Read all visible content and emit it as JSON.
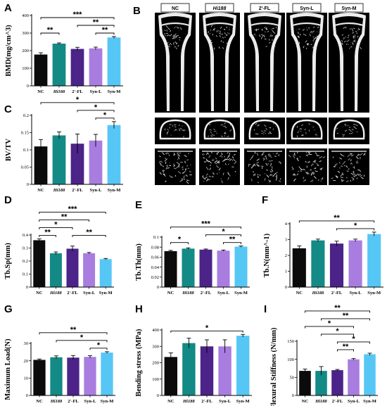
{
  "groups": [
    "NC",
    "Hi188",
    "2'-FL",
    "Syn-L",
    "Syn-M"
  ],
  "colors": [
    "#0b0b0b",
    "#138a85",
    "#4b2389",
    "#a87ddf",
    "#56c7f5"
  ],
  "panel_B": {
    "letter": "B",
    "labels": [
      "NC",
      "Hi188",
      "2'-FL",
      "Syn-L",
      "Syn-M"
    ]
  },
  "chart_data": [
    {
      "letter": "A",
      "type": "bar",
      "ylabel": "BMD(mg/cm^3)",
      "categories": [
        "NC",
        "Hi188",
        "2'-FL",
        "Syn-L",
        "Syn-M"
      ],
      "values": [
        178,
        240,
        210,
        213,
        275
      ],
      "errors": [
        10,
        4,
        9,
        7,
        5
      ],
      "ylim": [
        0,
        400
      ],
      "yticks": [
        0,
        100,
        200,
        300,
        400
      ],
      "significance": [
        {
          "from": 0,
          "to": 1,
          "label": "**"
        },
        {
          "from": 2,
          "to": 4,
          "label": "**"
        },
        {
          "from": 3,
          "to": 4,
          "label": "**"
        },
        {
          "from": 0,
          "to": 4,
          "label": "***"
        }
      ]
    },
    {
      "letter": "C",
      "type": "bar",
      "ylabel": "BV/TV",
      "categories": [
        "NC",
        "Hi188",
        "2'-FL",
        "Syn-L",
        "Syn-M"
      ],
      "values": [
        0.11,
        0.142,
        0.118,
        0.127,
        0.172
      ],
      "errors": [
        0.02,
        0.01,
        0.028,
        0.018,
        0.01
      ],
      "ylim": [
        0,
        0.2
      ],
      "yticks": [
        0,
        0.05,
        0.1,
        0.15,
        0.2
      ],
      "significance": [
        {
          "from": 0,
          "to": 4,
          "label": "*"
        },
        {
          "from": 2,
          "to": 4,
          "label": "*"
        },
        {
          "from": 3,
          "to": 4,
          "label": "*"
        }
      ]
    },
    {
      "letter": "D",
      "type": "bar",
      "ylabel": "Tb.Sp(mm)",
      "categories": [
        "NC",
        "Hi188",
        "2'-FL",
        "Syn-L",
        "Syn-M"
      ],
      "values": [
        0.36,
        0.26,
        0.295,
        0.26,
        0.215
      ],
      "errors": [
        0.01,
        0.01,
        0.02,
        0.006,
        0.005
      ],
      "ylim": [
        0,
        0.4
      ],
      "yticks": [
        0,
        0.1,
        0.2,
        0.3,
        0.4
      ],
      "significance": [
        {
          "from": 0,
          "to": 1,
          "label": "**"
        },
        {
          "from": 2,
          "to": 4,
          "label": "**"
        },
        {
          "from": 0,
          "to": 2,
          "label": "*"
        },
        {
          "from": 0,
          "to": 3,
          "label": "**"
        },
        {
          "from": 0,
          "to": 4,
          "label": "***"
        }
      ]
    },
    {
      "letter": "E",
      "type": "bar",
      "ylabel": "Tb.Th(mm)",
      "categories": [
        "NC",
        "Hi188",
        "2'-FL",
        "Syn-L",
        "Syn-M"
      ],
      "values": [
        0.072,
        0.077,
        0.075,
        0.073,
        0.081
      ],
      "errors": [
        0.0015,
        0.0015,
        0.0012,
        0.0012,
        0.0012
      ],
      "ylim": [
        0,
        0.1
      ],
      "yticks": [
        0,
        0.02,
        0.04,
        0.06,
        0.08,
        0.1
      ],
      "significance": [
        {
          "from": 0,
          "to": 1,
          "label": "*"
        },
        {
          "from": 3,
          "to": 4,
          "label": "**"
        },
        {
          "from": 2,
          "to": 4,
          "label": "*"
        },
        {
          "from": 0,
          "to": 4,
          "label": "***"
        }
      ]
    },
    {
      "letter": "F",
      "type": "bar",
      "ylabel": "Tb.N(mm^-1)",
      "categories": [
        "NC",
        "Hi188",
        "2'-FL",
        "Syn-L",
        "Syn-M"
      ],
      "values": [
        2.45,
        2.95,
        2.75,
        2.95,
        3.35
      ],
      "errors": [
        0.15,
        0.08,
        0.15,
        0.08,
        0.12
      ],
      "ylim": [
        0,
        4
      ],
      "yticks": [
        0,
        1,
        2,
        3,
        4
      ],
      "significance": [
        {
          "from": 2,
          "to": 4,
          "label": "*"
        },
        {
          "from": 0,
          "to": 4,
          "label": "**"
        }
      ]
    },
    {
      "letter": "G",
      "type": "bar",
      "ylabel": "Maximum Load(N)",
      "categories": [
        "NC",
        "Hi188",
        "2'-FL",
        "Syn-L",
        "Syn-M"
      ],
      "values": [
        20.5,
        22,
        21.8,
        22.2,
        24.7
      ],
      "errors": [
        0.5,
        0.8,
        1.2,
        0.7,
        0.5
      ],
      "ylim": [
        0,
        30
      ],
      "yticks": [
        0,
        10,
        20,
        30
      ],
      "significance": [
        {
          "from": 3,
          "to": 4,
          "label": "*"
        },
        {
          "from": 1,
          "to": 4,
          "label": "*"
        },
        {
          "from": 0,
          "to": 4,
          "label": "**"
        }
      ]
    },
    {
      "letter": "H",
      "type": "bar",
      "ylabel": "Bending stress (MPa)",
      "categories": [
        "NC",
        "Hi188",
        "2'-FL",
        "Syn-L",
        "Syn-M"
      ],
      "values": [
        235,
        320,
        300,
        300,
        365
      ],
      "errors": [
        25,
        30,
        40,
        40,
        8
      ],
      "ylim": [
        0,
        400
      ],
      "yticks": [
        0,
        100,
        200,
        300,
        400
      ],
      "significance": [
        {
          "from": 0,
          "to": 4,
          "label": "*"
        }
      ]
    },
    {
      "letter": "I",
      "type": "bar",
      "ylabel": "Flexural Stiffness (N/mm)",
      "categories": [
        "NC",
        "Hi188",
        "2'-FL",
        "Syn-L",
        "Syn-M"
      ],
      "values": [
        68,
        68,
        70,
        100,
        114
      ],
      "errors": [
        5,
        12,
        2,
        2,
        3
      ],
      "ylim": [
        0,
        150
      ],
      "yticks": [
        0,
        50,
        100,
        150
      ],
      "significance": [
        {
          "from": 2,
          "to": 4,
          "label": "*"
        },
        {
          "from": 1,
          "to": 3,
          "label": "*"
        },
        {
          "from": 2,
          "to": 3,
          "label": "**"
        },
        {
          "from": 0,
          "to": 3,
          "label": "*"
        },
        {
          "from": 1,
          "to": 4,
          "label": "**"
        },
        {
          "from": 0,
          "to": 4,
          "label": "**"
        }
      ]
    }
  ]
}
